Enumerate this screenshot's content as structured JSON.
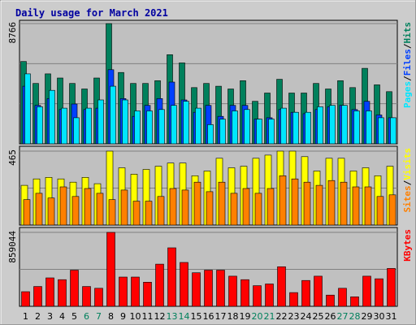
{
  "chart_data": {
    "type": "bar",
    "title": "Daily usage for March 2021",
    "categories": [
      "1",
      "2",
      "3",
      "4",
      "5",
      "6",
      "7",
      "8",
      "9",
      "10",
      "11",
      "12",
      "13",
      "14",
      "15",
      "16",
      "17",
      "18",
      "19",
      "20",
      "21",
      "22",
      "23",
      "24",
      "25",
      "26",
      "27",
      "28",
      "29",
      "30",
      "31"
    ],
    "weekend_days": [
      "6",
      "7",
      "13",
      "14",
      "20",
      "21",
      "27",
      "28"
    ],
    "panels": [
      {
        "id": "hits-files-pages",
        "ymax_label": "8766",
        "ymax": 8766,
        "legend": [
          "Pages",
          "Files",
          "Hits"
        ],
        "series": [
          {
            "name": "Hits",
            "color": "#00805c",
            "values": [
              6000,
              4400,
              5100,
              4800,
              4400,
              4000,
              4800,
              8766,
              5200,
              4400,
              4400,
              4600,
              6500,
              5900,
              4100,
              4400,
              4200,
              4000,
              4600,
              3100,
              3700,
              4700,
              3700,
              3700,
              4400,
              4000,
              4600,
              4100,
              5500,
              4300,
              3800
            ]
          },
          {
            "name": "Files",
            "color": "#0040ff",
            "values": [
              4200,
              2800,
              3300,
              2500,
              2900,
              2500,
              2600,
              5400,
              3300,
              2000,
              2800,
              3300,
              4500,
              3200,
              2300,
              2800,
              2000,
              2800,
              2800,
              1800,
              1900,
              2500,
              2300,
              2200,
              2500,
              2700,
              2800,
              2500,
              3100,
              2100,
              1900
            ]
          },
          {
            "name": "Pages",
            "color": "#00e6ff",
            "values": [
              5100,
              2700,
              3900,
              2600,
              1900,
              2600,
              3200,
              4200,
              3200,
              2400,
              2400,
              2500,
              2800,
              3100,
              2600,
              1400,
              1800,
              2400,
              2500,
              1800,
              1800,
              2600,
              2300,
              2300,
              2700,
              2800,
              2800,
              2400,
              2400,
              1900,
              1900
            ]
          }
        ]
      },
      {
        "id": "visits-sites",
        "ymax_label": "465",
        "ymax": 465,
        "legend": [
          "Sites",
          "Visits"
        ],
        "series": [
          {
            "name": "Visits",
            "color": "#ffff00",
            "values": [
              250,
              290,
              300,
              290,
              270,
              300,
              260,
              465,
              360,
              320,
              350,
              370,
              390,
              390,
              310,
              340,
              420,
              360,
              370,
              420,
              440,
              465,
              465,
              430,
              340,
              420,
              420,
              340,
              360,
              310,
              370
            ]
          },
          {
            "name": "Sites",
            "color": "#ff8000",
            "values": [
              160,
              200,
              170,
              240,
              180,
              230,
              200,
              160,
              220,
              150,
              150,
              180,
              230,
              220,
              270,
              210,
              270,
              200,
              230,
              200,
              230,
              310,
              290,
              270,
              250,
              280,
              270,
              240,
              240,
              180,
              190
            ]
          }
        ]
      },
      {
        "id": "kbytes",
        "ymax_label": "859044",
        "ymax": 859044,
        "legend": [
          "KBytes"
        ],
        "series": [
          {
            "name": "KBytes",
            "color": "#ff0000",
            "values": [
              170000,
              230000,
              330000,
              310000,
              420000,
              230000,
              210000,
              859044,
              340000,
              340000,
              280000,
              490000,
              680000,
              510000,
              390000,
              420000,
              420000,
              350000,
              310000,
              240000,
              260000,
              460000,
              160000,
              300000,
              350000,
              130000,
              210000,
              110000,
              350000,
              320000,
              440000
            ]
          }
        ]
      }
    ]
  },
  "colors": {
    "frame_bg": "#cccccc",
    "plot_bg": "#c0c0c0",
    "title": "#0000a0",
    "weekend_label": "#00805c"
  }
}
